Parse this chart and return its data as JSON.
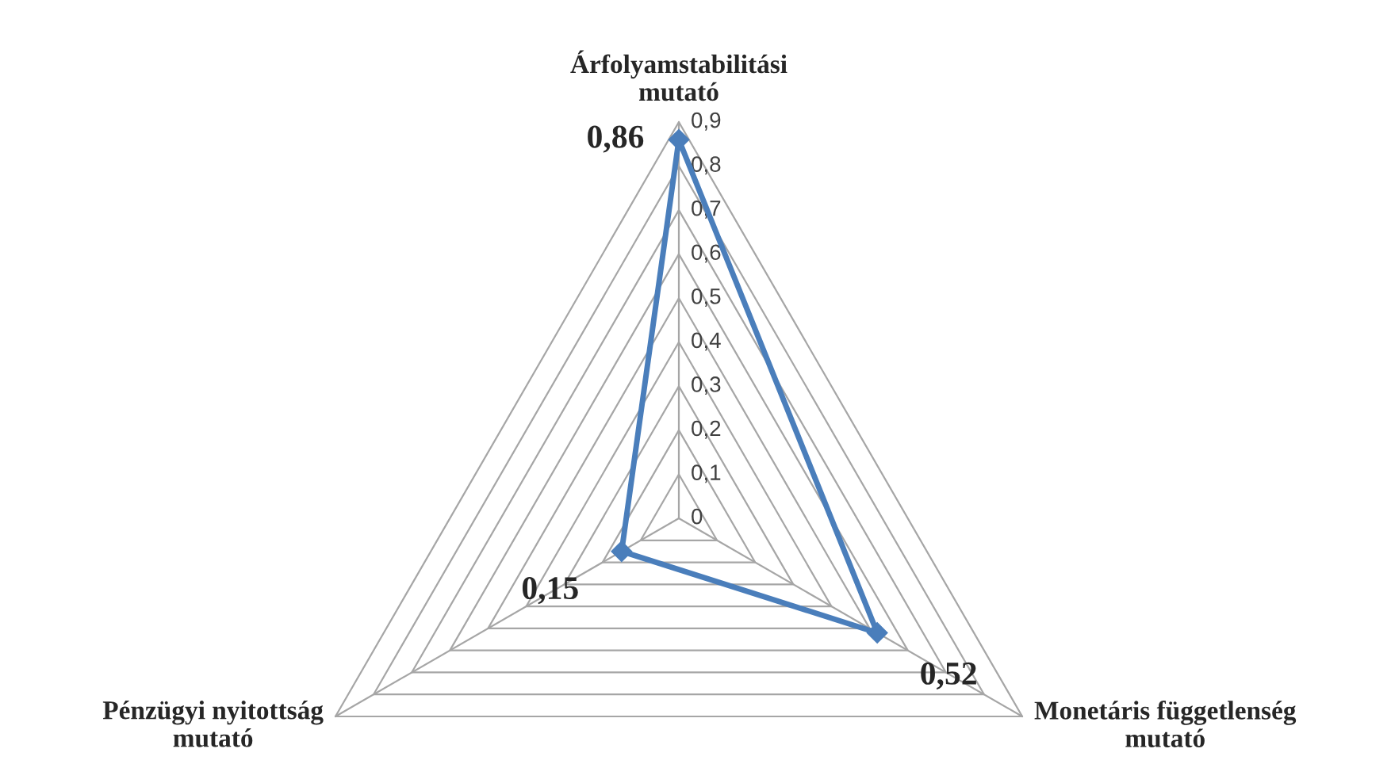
{
  "chart_data": {
    "type": "radar",
    "categories": [
      "Árfolyamstabilitási\nmutató",
      "Monetáris függetlenség\nmutató",
      "Pénzügyi nyitottság\nmutató"
    ],
    "series": [
      {
        "color": "#4a7ebb",
        "values": [
          0.86,
          0.52,
          0.15
        ],
        "value_labels": [
          "0,86",
          "0,52",
          "0,15"
        ]
      }
    ],
    "ylim": [
      0,
      0.9
    ],
    "yticks": [
      {
        "value": 0,
        "label": "0"
      },
      {
        "value": 0.1,
        "label": "0,1"
      },
      {
        "value": 0.2,
        "label": "0,2"
      },
      {
        "value": 0.3,
        "label": "0,3"
      },
      {
        "value": 0.4,
        "label": "0,4"
      },
      {
        "value": 0.5,
        "label": "0,5"
      },
      {
        "value": 0.6,
        "label": "0,6"
      },
      {
        "value": 0.7,
        "label": "0,7"
      },
      {
        "value": 0.8,
        "label": "0,8"
      },
      {
        "value": 0.9,
        "label": "0,9"
      }
    ],
    "grid": true,
    "marker": "diamond",
    "line_style": "solid"
  }
}
